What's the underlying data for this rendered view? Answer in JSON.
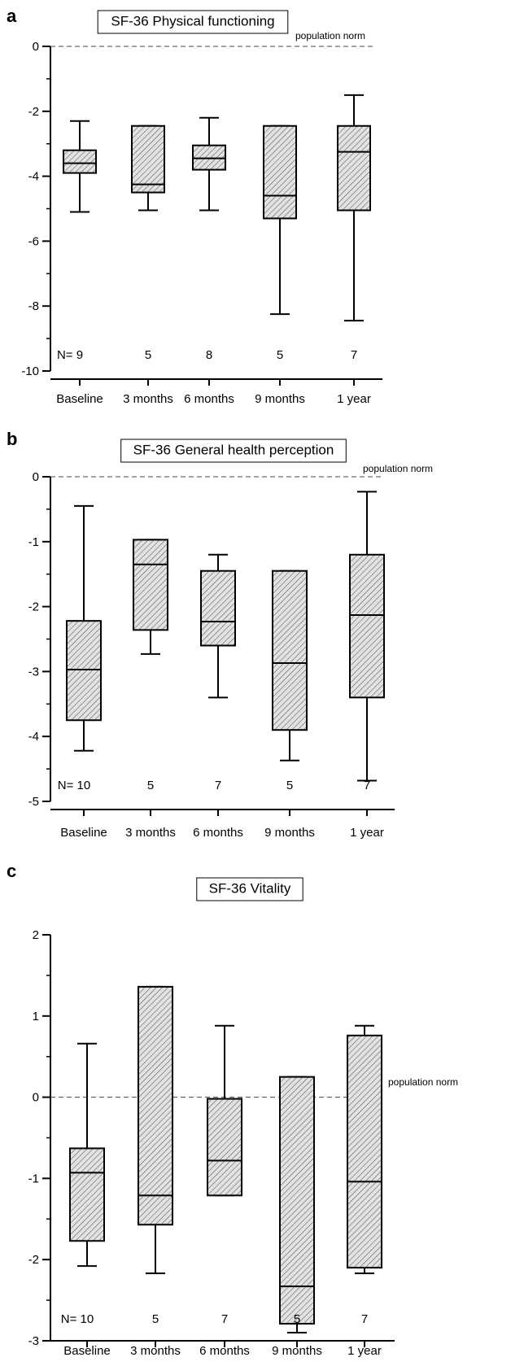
{
  "chart_data": [
    {
      "panel": "a",
      "type": "box",
      "title": "SF-36 Physical functioning",
      "reference_line": {
        "value": 0,
        "label": "population norm"
      },
      "ylim": [
        -10,
        0
      ],
      "yticks": [
        0,
        -2,
        -4,
        -6,
        -8,
        -10
      ],
      "categories": [
        "Baseline",
        "3 months",
        "6 months",
        "9 months",
        "1 year"
      ],
      "n_prefix": "N=",
      "n": [
        "9",
        "5",
        "8",
        "5",
        "7"
      ],
      "boxes": [
        {
          "min": -5.1,
          "q1": -3.9,
          "median": -3.6,
          "q3": -3.2,
          "max": -2.3
        },
        {
          "min": -5.05,
          "q1": -4.5,
          "median": -4.25,
          "q3": -2.45,
          "max": -2.45
        },
        {
          "min": -5.05,
          "q1": -3.8,
          "median": -3.45,
          "q3": -3.05,
          "max": -2.2
        },
        {
          "min": -8.25,
          "q1": -5.3,
          "median": -4.6,
          "q3": -2.45,
          "max": -2.45
        },
        {
          "min": -8.45,
          "q1": -5.05,
          "median": -3.25,
          "q3": -2.45,
          "max": -1.5
        }
      ]
    },
    {
      "panel": "b",
      "type": "box",
      "title": "SF-36 General health perception",
      "reference_line": {
        "value": 0,
        "label": "population norm"
      },
      "ylim": [
        -5,
        0
      ],
      "yticks": [
        0,
        -1,
        -2,
        -3,
        -4,
        -5
      ],
      "categories": [
        "Baseline",
        "3 months",
        "6 months",
        "9 months",
        "1 year"
      ],
      "n_prefix": "N=",
      "n": [
        "10",
        "5",
        "7",
        "5",
        "7"
      ],
      "boxes": [
        {
          "min": -4.22,
          "q1": -3.75,
          "median": -2.97,
          "q3": -2.22,
          "max": -0.45
        },
        {
          "min": -2.73,
          "q1": -2.36,
          "median": -1.35,
          "q3": -0.97,
          "max": -0.97
        },
        {
          "min": -3.4,
          "q1": -2.6,
          "median": -2.23,
          "q3": -1.45,
          "max": -1.2
        },
        {
          "min": -4.37,
          "q1": -3.9,
          "median": -2.87,
          "q3": -1.45,
          "max": -1.45
        },
        {
          "min": -4.68,
          "q1": -3.4,
          "median": -2.13,
          "q3": -1.2,
          "max": -0.23
        }
      ]
    },
    {
      "panel": "c",
      "type": "box",
      "title": "SF-36 Vitality",
      "reference_line": {
        "value": 0,
        "label": "population norm"
      },
      "ylim": [
        -3,
        2
      ],
      "yticks": [
        2,
        1,
        0,
        -1,
        -2,
        -3
      ],
      "categories": [
        "Baseline",
        "3 months",
        "6 months",
        "9 months",
        "1 year"
      ],
      "n_prefix": "N=",
      "n": [
        "10",
        "5",
        "7",
        "5",
        "7"
      ],
      "boxes": [
        {
          "min": -2.08,
          "q1": -1.77,
          "median": -0.93,
          "q3": -0.63,
          "max": 0.66
        },
        {
          "min": -2.17,
          "q1": -1.57,
          "median": -1.21,
          "q3": 1.36,
          "max": 1.36
        },
        {
          "min": -1.21,
          "q1": -1.21,
          "median": -0.78,
          "q3": -0.02,
          "max": 0.88
        },
        {
          "min": -2.9,
          "q1": -2.79,
          "median": -2.33,
          "q3": 0.25,
          "max": 0.25
        },
        {
          "min": -2.17,
          "q1": -2.1,
          "median": -1.04,
          "q3": 0.76,
          "max": 0.88
        }
      ]
    }
  ]
}
